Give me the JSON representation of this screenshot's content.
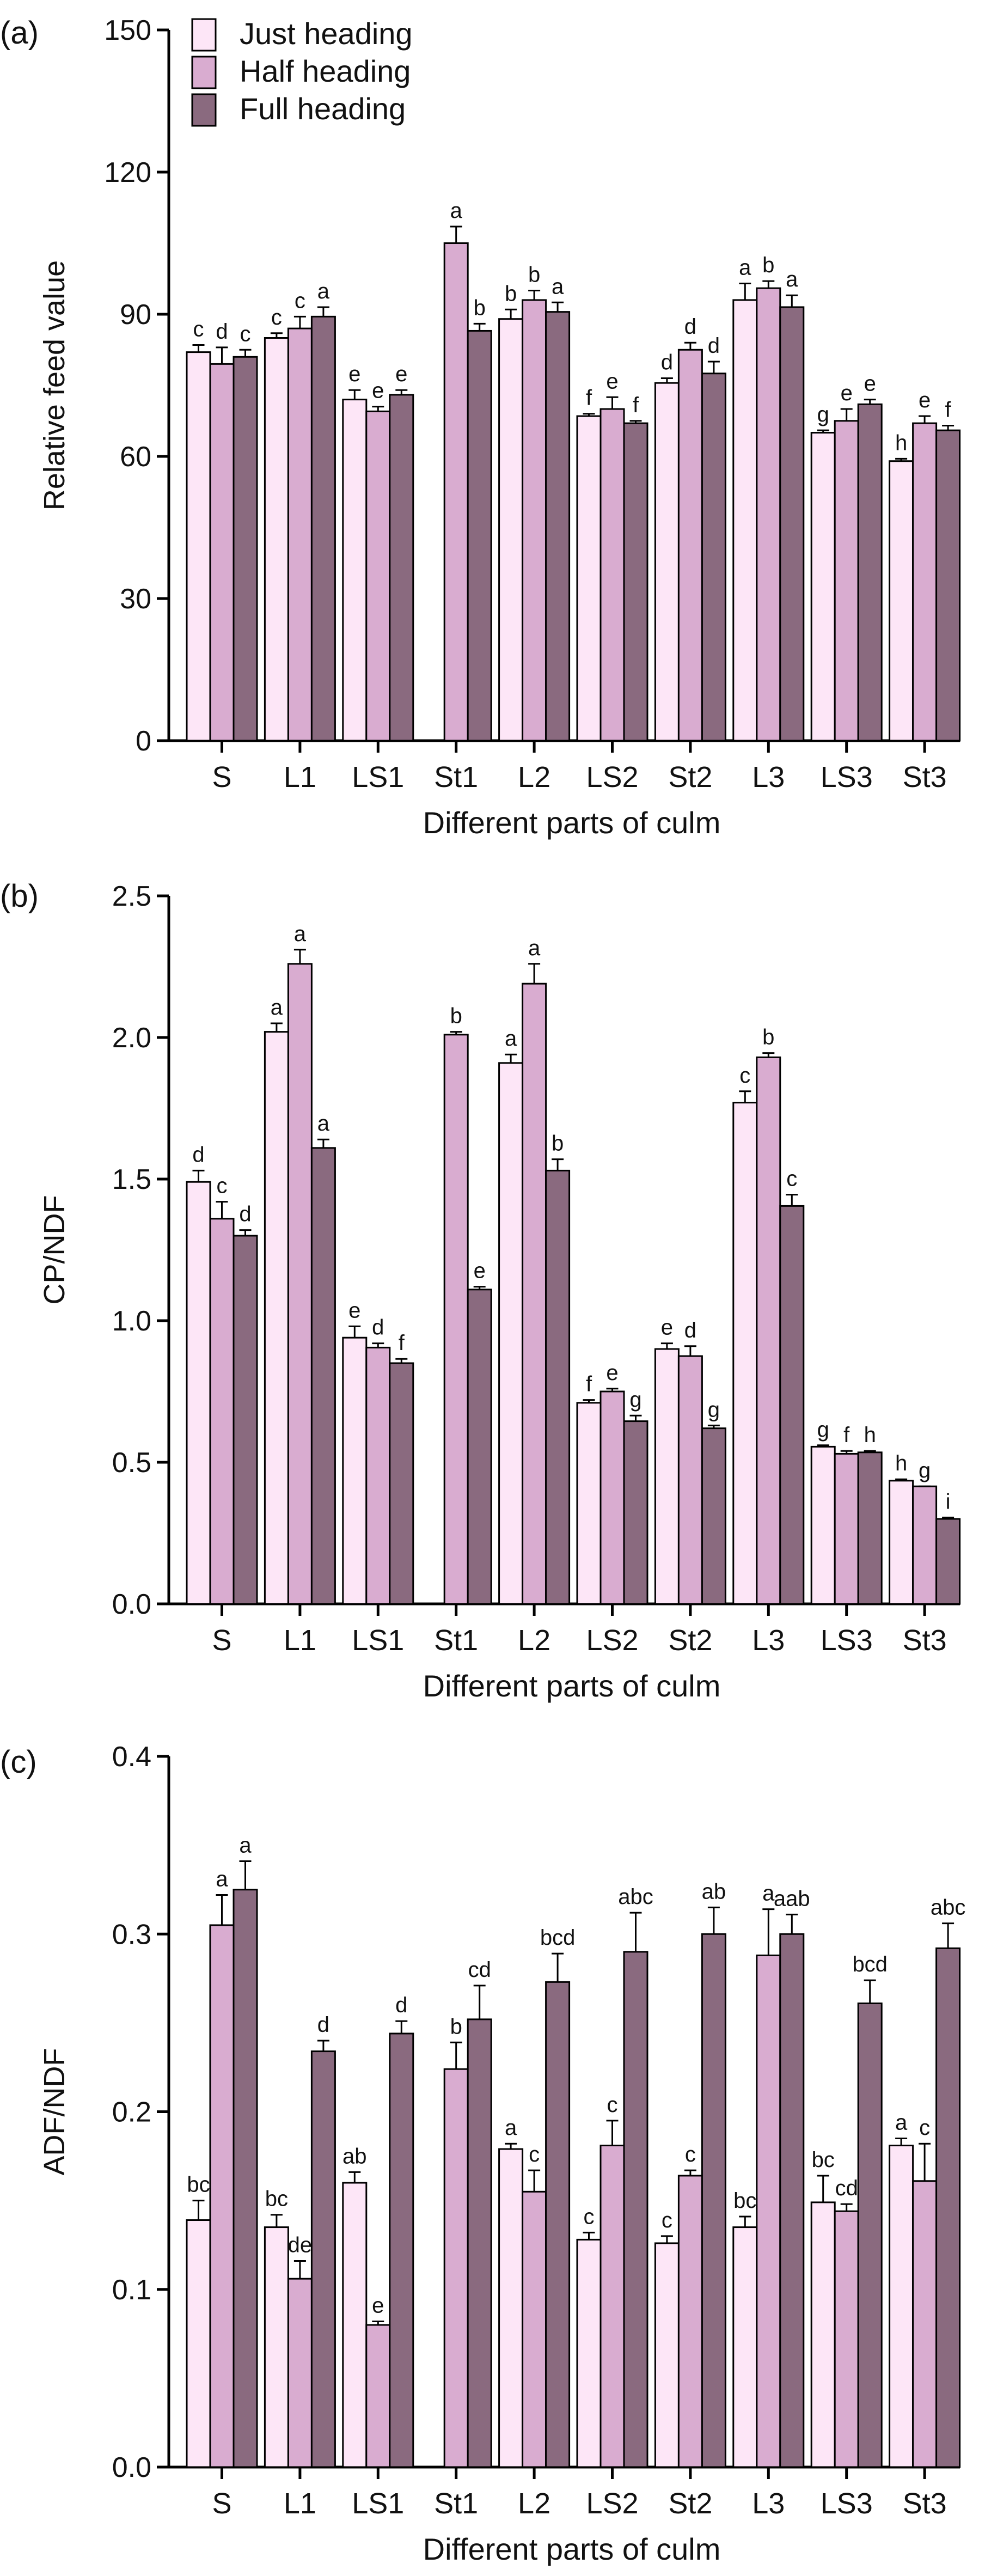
{
  "figure": {
    "legend": [
      {
        "name": "Just heading",
        "color": "#fde6f7"
      },
      {
        "name": "Half heading",
        "color": "#d9acd0"
      },
      {
        "name": "Full heading",
        "color": "#8a6a7f"
      }
    ]
  },
  "chart_data": [
    {
      "type": "bar",
      "panel_label": "(a)",
      "ylabel": "Relative feed value",
      "xlabel": "Different parts of culm",
      "ylim": [
        0,
        150
      ],
      "yticks": [
        0,
        30,
        60,
        90,
        120,
        150
      ],
      "ytick_labels": [
        "0",
        "30",
        "60",
        "90",
        "120",
        "150"
      ],
      "categories": [
        "S",
        "L1",
        "LS1",
        "St1",
        "L2",
        "LS2",
        "St2",
        "L3",
        "LS3",
        "St3"
      ],
      "series": [
        {
          "name": "Just heading",
          "values": [
            82,
            85,
            72,
            null,
            89,
            68.5,
            75.5,
            93,
            65,
            59
          ],
          "errors": [
            1.5,
            1,
            2,
            null,
            2,
            0.5,
            1,
            3.5,
            0.5,
            0.5
          ],
          "letters": [
            "c",
            "c",
            "e",
            "",
            "b",
            "f",
            "d",
            "a",
            "g",
            "h"
          ]
        },
        {
          "name": "Half heading",
          "values": [
            79.5,
            87,
            69.5,
            105,
            93,
            70,
            82.5,
            95.5,
            67.5,
            67
          ],
          "errors": [
            3.5,
            2.5,
            1,
            3.5,
            2,
            2.5,
            1.5,
            1.5,
            2.5,
            1.5
          ],
          "letters": [
            "d",
            "c",
            "e",
            "a",
            "b",
            "e",
            "d",
            "b",
            "e",
            "e"
          ]
        },
        {
          "name": "Full heading",
          "values": [
            81,
            89.5,
            73,
            86.5,
            90.5,
            67,
            77.5,
            91.5,
            71,
            65.5
          ],
          "errors": [
            1.5,
            2,
            1,
            1.5,
            2,
            0.5,
            2.5,
            2.5,
            1,
            1
          ],
          "letters": [
            "c",
            "a",
            "e",
            "b",
            "a",
            "f",
            "d",
            "a",
            "e",
            "f"
          ]
        }
      ]
    },
    {
      "type": "bar",
      "panel_label": "(b)",
      "ylabel": "CP/NDF",
      "xlabel": "Different parts of culm",
      "ylim": [
        0,
        2.5
      ],
      "yticks": [
        0,
        0.5,
        1.0,
        1.5,
        2.0,
        2.5
      ],
      "ytick_labels": [
        "0.0",
        "0.5",
        "1.0",
        "1.5",
        "2.0",
        "2.5"
      ],
      "categories": [
        "S",
        "L1",
        "LS1",
        "St1",
        "L2",
        "LS2",
        "St2",
        "L3",
        "LS3",
        "St3"
      ],
      "series": [
        {
          "name": "Just heading",
          "values": [
            1.49,
            2.02,
            0.94,
            null,
            1.91,
            0.71,
            0.9,
            1.77,
            0.555,
            0.435
          ],
          "errors": [
            0.04,
            0.03,
            0.04,
            null,
            0.03,
            0.01,
            0.02,
            0.04,
            0.005,
            0.005
          ],
          "letters": [
            "d",
            "a",
            "e",
            "",
            "a",
            "f",
            "e",
            "c",
            "g",
            "h"
          ]
        },
        {
          "name": "Half heading",
          "values": [
            1.36,
            2.26,
            0.905,
            2.01,
            2.19,
            0.75,
            0.875,
            1.93,
            0.53,
            0.415
          ],
          "errors": [
            0.06,
            0.05,
            0.015,
            0.01,
            0.07,
            0.01,
            0.035,
            0.015,
            0.01,
            0.0
          ],
          "letters": [
            "c",
            "a",
            "d",
            "b",
            "a",
            "e",
            "d",
            "b",
            "f",
            "g"
          ]
        },
        {
          "name": "Full heading",
          "values": [
            1.3,
            1.61,
            0.85,
            1.11,
            1.53,
            0.645,
            0.62,
            1.405,
            0.535,
            0.3
          ],
          "errors": [
            0.02,
            0.03,
            0.015,
            0.01,
            0.04,
            0.02,
            0.01,
            0.04,
            0.005,
            0.005
          ],
          "letters": [
            "d",
            "a",
            "f",
            "e",
            "b",
            "g",
            "g",
            "c",
            "h",
            "i"
          ]
        }
      ]
    },
    {
      "type": "bar",
      "panel_label": "(c)",
      "ylabel": "ADF/NDF",
      "xlabel": "Different parts of culm",
      "ylim": [
        0,
        0.4
      ],
      "yticks": [
        0,
        0.1,
        0.2,
        0.3,
        0.4
      ],
      "ytick_labels": [
        "0.0",
        "0.1",
        "0.2",
        "0.3",
        "0.4"
      ],
      "categories": [
        "S",
        "L1",
        "LS1",
        "St1",
        "L2",
        "LS2",
        "St2",
        "L3",
        "LS3",
        "St3"
      ],
      "series": [
        {
          "name": "Just heading",
          "values": [
            0.139,
            0.135,
            0.16,
            null,
            0.179,
            0.128,
            0.126,
            0.135,
            0.149,
            0.181
          ],
          "errors": [
            0.011,
            0.007,
            0.006,
            null,
            0.003,
            0.004,
            0.004,
            0.006,
            0.015,
            0.004
          ],
          "letters": [
            "bc",
            "bc",
            "ab",
            "",
            "a",
            "c",
            "c",
            "bc",
            "bc",
            "a"
          ]
        },
        {
          "name": "Half heading",
          "values": [
            0.305,
            0.106,
            0.08,
            0.224,
            0.155,
            0.181,
            0.164,
            0.288,
            0.144,
            0.161
          ],
          "errors": [
            0.017,
            0.01,
            0.002,
            0.015,
            0.012,
            0.014,
            0.003,
            0.026,
            0.004,
            0.021
          ],
          "letters": [
            "a",
            "de",
            "e",
            "b",
            "c",
            "c",
            "c",
            "a",
            "cd",
            "c"
          ]
        },
        {
          "name": "Full heading",
          "values": [
            0.325,
            0.234,
            0.244,
            0.252,
            0.273,
            0.29,
            0.3,
            0.3,
            0.261,
            0.292
          ],
          "errors": [
            0.016,
            0.006,
            0.007,
            0.019,
            0.016,
            0.022,
            0.015,
            0.011,
            0.013,
            0.014
          ],
          "letters": [
            "a",
            "d",
            "d",
            "cd",
            "bcd",
            "abc",
            "ab",
            "aab",
            "bcd",
            "abc"
          ]
        }
      ]
    }
  ]
}
